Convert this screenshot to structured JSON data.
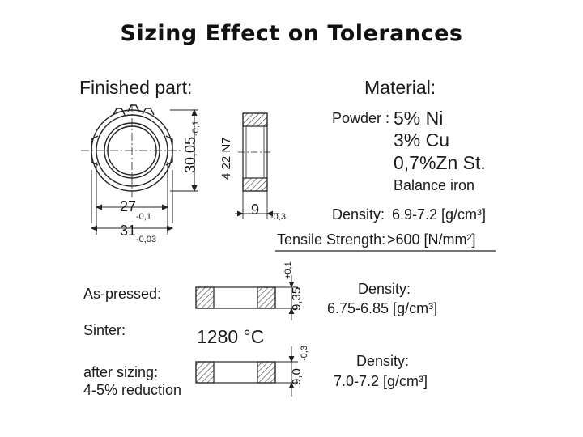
{
  "slide": {
    "title": "Sizing Effect on Tolerances"
  },
  "finished_part": {
    "heading": "Finished part:",
    "dim_height": "30,05",
    "dim_height_tol": "-0,1",
    "dim_inner": "27",
    "dim_inner_tol": "-0,1",
    "dim_outer": "31",
    "dim_outer_tol": "-0,03",
    "gear_spec": "4 22 N7",
    "dim_width": "9",
    "dim_width_tol": "-0,3"
  },
  "material": {
    "heading": "Material:",
    "powder_label": "Powder :",
    "composition": [
      "5% Ni",
      "3% Cu",
      "0,7%Zn St.",
      "Balance iron"
    ],
    "density_label": "Density:",
    "density_value": "6.9-7.2 [g/cm³]",
    "tensile_label": "Tensile Strength:",
    "tensile_value": ">600 [N/mm²]"
  },
  "as_pressed": {
    "label": "As-pressed:",
    "dim": "9,35",
    "tol": "+0,1",
    "density_label": "Density:",
    "density_value": "6.75-6.85 [g/cm³]"
  },
  "sinter": {
    "label": "Sinter:",
    "temperature": "1280 °C"
  },
  "after_sizing": {
    "label": "after sizing:",
    "reduction": "4-5% reduction",
    "dim": "9,0",
    "tol": "-0,3",
    "density_label": "Density:",
    "density_value": "7.0-7.2 [g/cm³]"
  }
}
